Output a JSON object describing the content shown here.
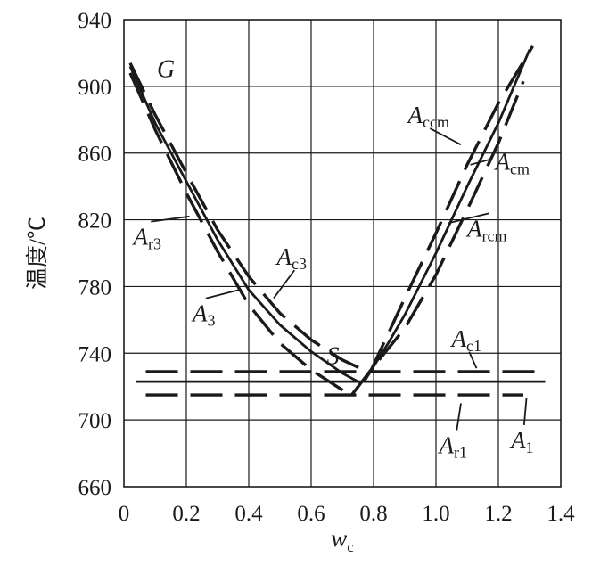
{
  "chart_data": {
    "type": "line",
    "title": "",
    "xlabel": "w",
    "xlabel_sub": "c",
    "ylabel": "温度/℃",
    "xlim": [
      0,
      1.4
    ],
    "ylim": [
      660,
      940
    ],
    "xticks": [
      "0",
      "0.2",
      "0.4",
      "0.6",
      "0.8",
      "1.0",
      "1.2",
      "1.4"
    ],
    "yticks": [
      "660",
      "700",
      "740",
      "780",
      "820",
      "860",
      "900",
      "940"
    ],
    "grid": true,
    "point_labels": [
      {
        "text": "G",
        "x": 0.02,
        "y": 912
      },
      {
        "text": "S",
        "x": 0.77,
        "y": 727
      }
    ],
    "series": [
      {
        "name": "A3",
        "style": "solid",
        "x": [
          0.02,
          0.1,
          0.2,
          0.3,
          0.4,
          0.5,
          0.6,
          0.7,
          0.75
        ],
        "y": [
          912,
          878,
          843,
          808,
          778,
          757,
          741,
          728,
          723
        ]
      },
      {
        "name": "Ac3",
        "style": "dash",
        "x": [
          0.02,
          0.1,
          0.2,
          0.3,
          0.4,
          0.5,
          0.6,
          0.7,
          0.78
        ],
        "y": [
          914,
          883,
          848,
          814,
          786,
          764,
          748,
          736,
          729
        ]
      },
      {
        "name": "Ar3",
        "style": "dash",
        "x": [
          0.02,
          0.1,
          0.2,
          0.3,
          0.4,
          0.5,
          0.6,
          0.7,
          0.73
        ],
        "y": [
          908,
          874,
          836,
          801,
          769,
          746,
          730,
          718,
          714
        ]
      },
      {
        "name": "Acm",
        "style": "solid",
        "x": [
          0.77,
          0.85,
          0.9,
          1.0,
          1.1,
          1.2,
          1.3
        ],
        "y": [
          723,
          747,
          763,
          800,
          840,
          878,
          922
        ]
      },
      {
        "name": "Accm",
        "style": "dash",
        "x": [
          0.79,
          0.85,
          0.9,
          1.0,
          1.1,
          1.2,
          1.31
        ],
        "y": [
          729,
          753,
          773,
          812,
          853,
          890,
          924
        ]
      },
      {
        "name": "Arcm",
        "style": "dash",
        "x": [
          0.73,
          0.8,
          0.9,
          1.0,
          1.1,
          1.2,
          1.28
        ],
        "y": [
          715,
          732,
          755,
          787,
          826,
          866,
          903
        ]
      },
      {
        "name": "A1",
        "style": "solid",
        "x": [
          0.04,
          1.35
        ],
        "y": [
          723,
          723
        ]
      },
      {
        "name": "Ac1",
        "style": "dash",
        "x": [
          0.07,
          1.32
        ],
        "y": [
          729,
          729
        ]
      },
      {
        "name": "Ar1",
        "style": "dash",
        "x": [
          0.07,
          1.28
        ],
        "y": [
          715,
          715
        ]
      }
    ],
    "annotations": [
      {
        "base": "A",
        "sub": "ccm",
        "x": 0.91,
        "y": 878,
        "tx": 1.08,
        "ty": 865
      },
      {
        "base": "A",
        "sub": "cm",
        "x": 1.19,
        "y": 850,
        "tx": 1.11,
        "ty": 853
      },
      {
        "base": "A",
        "sub": "rcm",
        "x": 1.1,
        "y": 810,
        "tx": 1.04,
        "ty": 818
      },
      {
        "base": "A",
        "sub": "r3",
        "x": 0.03,
        "y": 805,
        "tx": 0.21,
        "ty": 822
      },
      {
        "base": "A",
        "sub": "3",
        "x": 0.22,
        "y": 759,
        "tx": 0.37,
        "ty": 778
      },
      {
        "base": "A",
        "sub": "c3",
        "x": 0.49,
        "y": 793,
        "tx": 0.48,
        "ty": 773
      },
      {
        "base": "A",
        "sub": "c1",
        "x": 1.05,
        "y": 744,
        "tx": 1.13,
        "ty": 731
      },
      {
        "base": "A",
        "sub": "r1",
        "x": 1.01,
        "y": 680,
        "tx": 1.08,
        "ty": 710
      },
      {
        "base": "A",
        "sub": "1",
        "x": 1.24,
        "y": 683,
        "tx": 1.29,
        "ty": 713
      }
    ]
  }
}
